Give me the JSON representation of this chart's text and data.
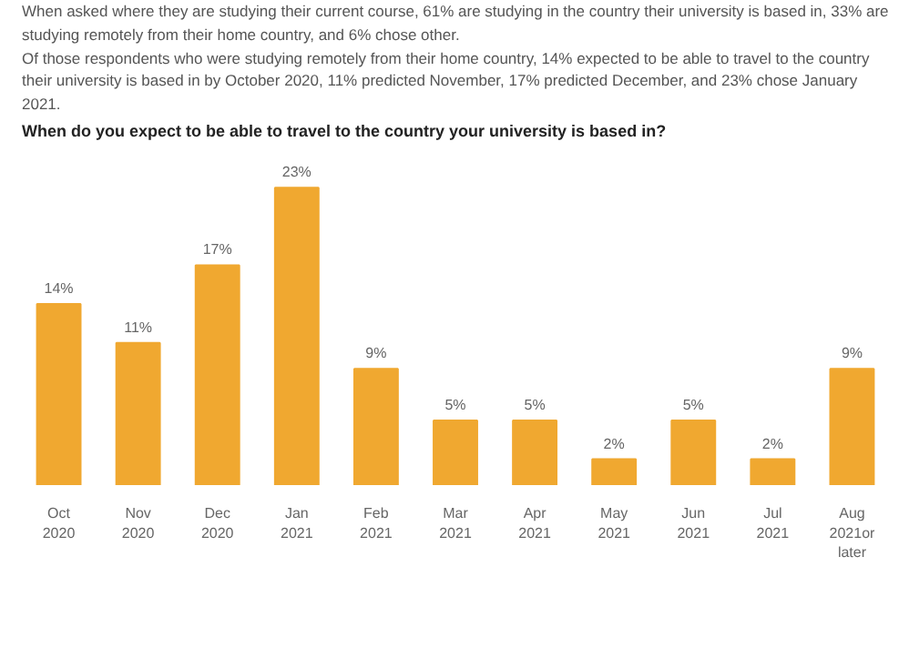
{
  "chart_data": {
    "type": "bar",
    "title": "When do you expect to be able to travel to the country your university is based in?",
    "annotations": [
      "When asked where they are studying their current course, 61% are studying in the country their university is based in, 33% are studying remotely from their home country, and 6% chose other.",
      "Of those respondents who were studying remotely from their home country, 14% expected to be able to travel to the country their university is based in by October 2020, 11% predicted November, 17% predicted December, and 23% chose January 2021."
    ],
    "categories": [
      "Oct\n2020",
      "Nov\n2020",
      "Dec\n2020",
      "Jan\n2021",
      "Feb\n2021",
      "Mar\n2021",
      "Apr\n2021",
      "May\n2021",
      "Jun\n2021",
      "Jul\n2021",
      "Aug\n2021or\nlater"
    ],
    "values": [
      14,
      11,
      17,
      23,
      9,
      5,
      5,
      2,
      5,
      2,
      9
    ],
    "value_labels": [
      "14%",
      "11%",
      "17%",
      "23%",
      "9%",
      "5%",
      "5%",
      "2%",
      "5%",
      "2%",
      "9%"
    ],
    "color": "#f0a830",
    "grid": false
  }
}
